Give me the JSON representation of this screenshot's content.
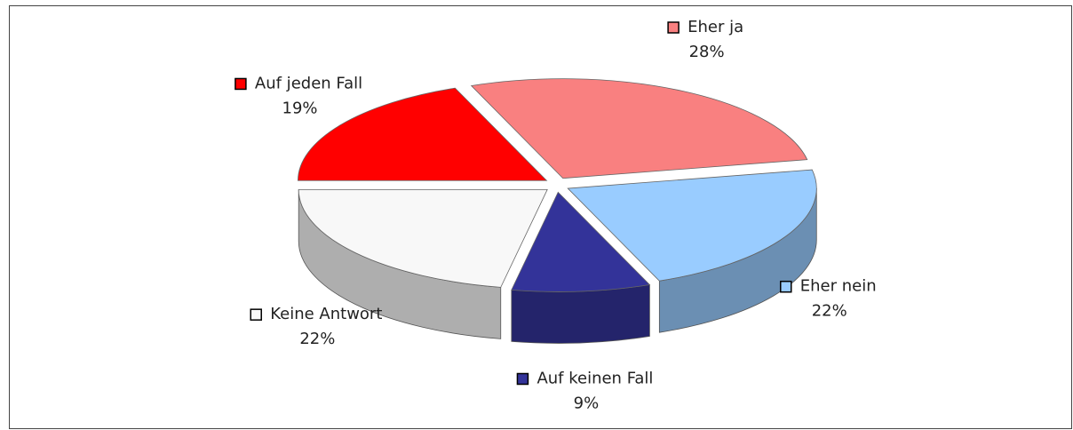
{
  "chart_data": {
    "type": "pie",
    "categories": [
      "Auf jeden Fall",
      "Eher ja",
      "Eher nein",
      "Auf keinen Fall",
      "Keine Antwort"
    ],
    "values": [
      19,
      28,
      22,
      9,
      22
    ],
    "value_labels": [
      "19%",
      "28%",
      "22%",
      "9%",
      "22%"
    ],
    "colors": [
      "#ff0000",
      "#f98080",
      "#99ccff",
      "#333399",
      "#f8f8f8"
    ],
    "exploded": true,
    "three_d": true
  }
}
